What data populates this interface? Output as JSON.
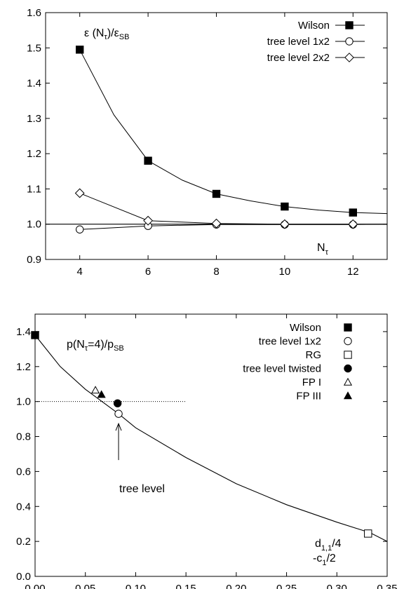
{
  "chart_data": [
    {
      "type": "line",
      "annotation": {
        "main": "ε (N",
        "sub1": "τ",
        "mid": ")/ε",
        "sub2": "SB"
      },
      "xlabel": {
        "main": "N",
        "sub": "τ"
      },
      "xlim": [
        3,
        13
      ],
      "ylim": [
        0.9,
        1.6
      ],
      "xticks": [
        4,
        6,
        8,
        10,
        12
      ],
      "yticks": [
        "0.9",
        "1.0",
        "1.1",
        "1.2",
        "1.3",
        "1.4",
        "1.5",
        "1.6"
      ],
      "reference_line": 1.0,
      "legend_position": "top-right",
      "series": [
        {
          "name": "Wilson",
          "marker": "filled-square",
          "x": [
            4,
            6,
            8,
            10,
            12
          ],
          "y": [
            1.495,
            1.18,
            1.086,
            1.05,
            1.033
          ],
          "curve": [
            [
              4,
              1.495
            ],
            [
              5,
              1.31
            ],
            [
              6,
              1.18
            ],
            [
              7,
              1.125
            ],
            [
              8,
              1.086
            ],
            [
              9,
              1.066
            ],
            [
              10,
              1.05
            ],
            [
              11,
              1.04
            ],
            [
              12,
              1.033
            ],
            [
              13,
              1.03
            ]
          ]
        },
        {
          "name": "tree level 1x2",
          "marker": "open-circle",
          "x": [
            4,
            6,
            8,
            10,
            12
          ],
          "y": [
            0.985,
            0.995,
            0.999,
            0.999,
            0.999
          ],
          "curve": [
            [
              4,
              0.985
            ],
            [
              6,
              0.995
            ],
            [
              8,
              0.999
            ],
            [
              10,
              0.999
            ],
            [
              12,
              0.999
            ],
            [
              13,
              1.0
            ]
          ]
        },
        {
          "name": "tree level 2x2",
          "marker": "open-diamond",
          "x": [
            4,
            6,
            8,
            10,
            12
          ],
          "y": [
            1.088,
            1.01,
            1.002,
            1.0,
            1.0
          ],
          "curve": [
            [
              4,
              1.088
            ],
            [
              6,
              1.01
            ],
            [
              8,
              1.002
            ],
            [
              10,
              1.0
            ],
            [
              12,
              1.0
            ],
            [
              13,
              1.0
            ]
          ]
        }
      ]
    },
    {
      "type": "scatter",
      "annotation": {
        "main": "p(N",
        "sub1": "τ",
        "mid": "=4)/p",
        "sub2": "SB"
      },
      "xlabel": {
        "line1_main": "d",
        "line1_sub": "1,1",
        "line1_tail": "/4",
        "line2_main": "-c",
        "line2_sub": "1",
        "line2_tail": "/2"
      },
      "xlim": [
        0,
        0.35
      ],
      "ylim": [
        0,
        1.5
      ],
      "xticks": [
        "0.00",
        "0.05",
        "0.10",
        "0.15",
        "0.20",
        "0.25",
        "0.30",
        "0.35"
      ],
      "yticks": [
        "0.0",
        "0.2",
        "0.4",
        "0.6",
        "0.8",
        "1.0",
        "1.2",
        "1.4"
      ],
      "reference_line": {
        "y": 1.0,
        "x_range": [
          0,
          0.15
        ],
        "style": "dotted"
      },
      "curve": [
        [
          0,
          1.38
        ],
        [
          0.025,
          1.2
        ],
        [
          0.05,
          1.07
        ],
        [
          0.083,
          0.93
        ],
        [
          0.1,
          0.85
        ],
        [
          0.15,
          0.68
        ],
        [
          0.2,
          0.53
        ],
        [
          0.25,
          0.41
        ],
        [
          0.3,
          0.31
        ],
        [
          0.333,
          0.25
        ],
        [
          0.35,
          0.2
        ]
      ],
      "arrow_label": "tree level",
      "arrow_target": [
        0.083,
        0.93
      ],
      "legend_position": "top-right",
      "series": [
        {
          "name": "Wilson",
          "marker": "filled-square",
          "x": [
            0.0
          ],
          "y": [
            1.38
          ]
        },
        {
          "name": "tree level 1x2",
          "marker": "open-circle",
          "x": [
            0.083
          ],
          "y": [
            0.93
          ]
        },
        {
          "name": "RG",
          "marker": "open-square",
          "x": [
            0.331
          ],
          "y": [
            0.245
          ]
        },
        {
          "name": "tree level twisted",
          "marker": "filled-circle",
          "x": [
            0.082
          ],
          "y": [
            0.99
          ]
        },
        {
          "name": "FP I",
          "marker": "open-triangle",
          "x": [
            0.06
          ],
          "y": [
            1.065
          ]
        },
        {
          "name": "FP III",
          "marker": "filled-triangle",
          "x": [
            0.066
          ],
          "y": [
            1.04
          ]
        }
      ]
    }
  ]
}
